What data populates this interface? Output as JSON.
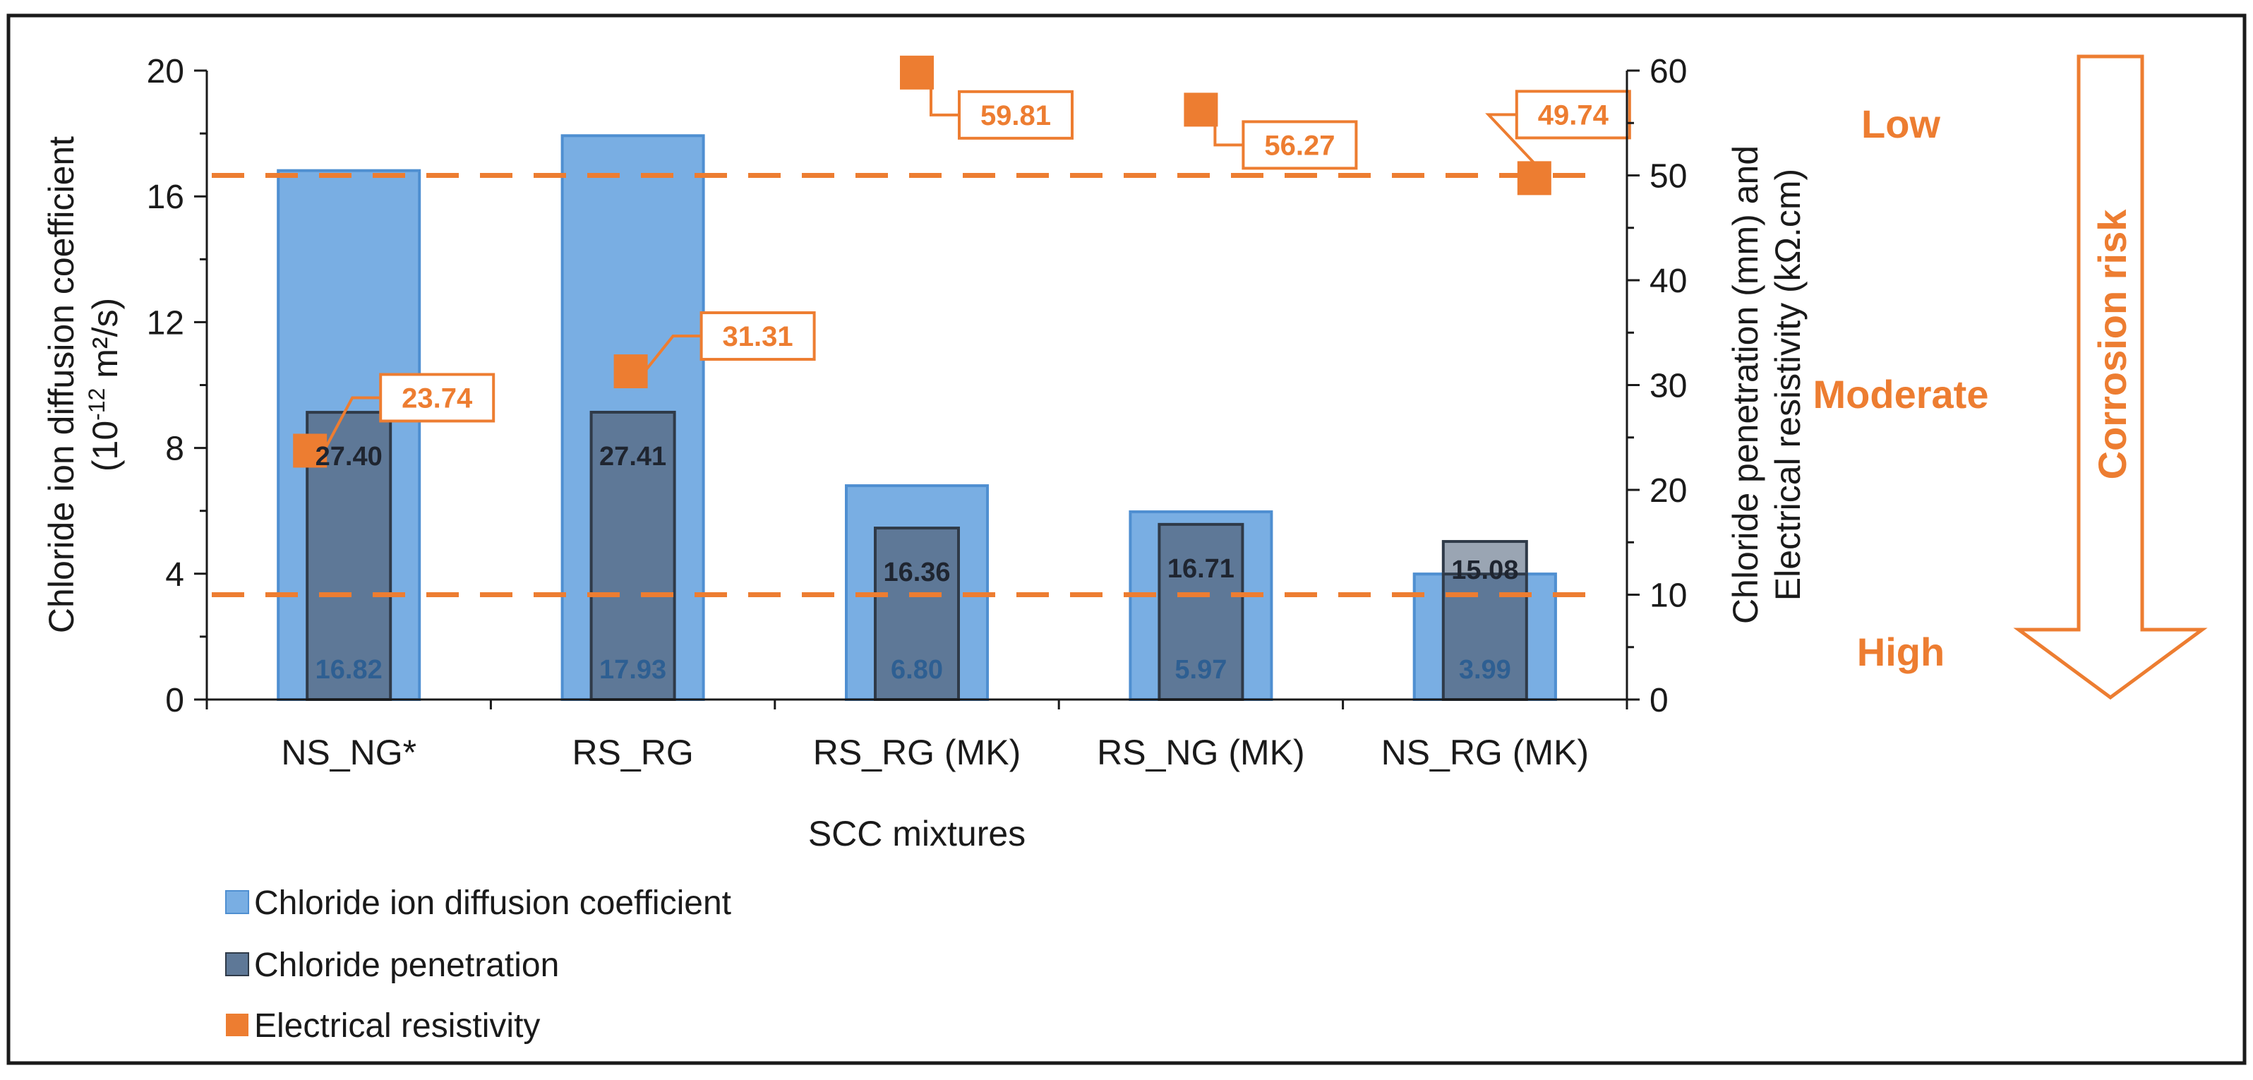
{
  "colors": {
    "diffusion_fill": "#79aee3",
    "diffusion_stroke": "#4f8fd1",
    "penetration_fill": "#5e7897",
    "penetration_fill_last": "#9aa5b3",
    "penetration_stroke": "#2f3a48",
    "resistivity": "#ed7d31",
    "axis": "#1a1a1a"
  },
  "chart_data": {
    "type": "bar",
    "categories": [
      "NS_NG*",
      "RS_RG",
      "RS_RG (MK)",
      "RS_NG (MK)",
      "NS_RG (MK)"
    ],
    "series": [
      {
        "name": "Chloride ion diffusion coefficient",
        "axis": "left",
        "values": [
          16.82,
          17.93,
          6.8,
          5.97,
          3.99
        ],
        "labels": [
          "16.82",
          "17.93",
          "6.80",
          "5.97",
          "3.99"
        ]
      },
      {
        "name": "Chloride penetration",
        "axis": "right",
        "values": [
          27.4,
          27.41,
          16.36,
          16.71,
          15.08
        ],
        "labels": [
          "27.40",
          "27.41",
          "16.36",
          "16.71",
          "15.08"
        ]
      },
      {
        "name": "Electrical resistivity",
        "axis": "right",
        "values": [
          23.74,
          31.31,
          59.81,
          56.27,
          49.74
        ],
        "labels": [
          "23.74",
          "31.31",
          "59.81",
          "56.27",
          "49.74"
        ]
      }
    ],
    "xlabel": "SCC mixtures",
    "ylabel_left_line1": "Chloride ion diffusion coefficient",
    "ylabel_left_line2_prefix": "(10",
    "ylabel_left_line2_exp": "-12",
    "ylabel_left_line2_suffix": " m²/s)",
    "ylabel_right_line1": "Chloride penetration (mm) and",
    "ylabel_right_line2": "Electrical resistivity  (kΩ.cm)",
    "ylim_left": [
      0,
      20
    ],
    "ylim_right": [
      0,
      60
    ],
    "yticks_left": [
      "0",
      "4",
      "8",
      "12",
      "16",
      "20"
    ],
    "yticks_right": [
      "0",
      "10",
      "20",
      "30",
      "40",
      "50",
      "60"
    ],
    "thresholds_right": [
      10,
      50
    ],
    "risk_title": "Corrosion risk",
    "risk_levels": [
      "Low",
      "Moderate",
      "High"
    ],
    "legend": [
      "Chloride ion diffusion coefficient",
      "Chloride penetration",
      "Electrical resistivity"
    ]
  }
}
